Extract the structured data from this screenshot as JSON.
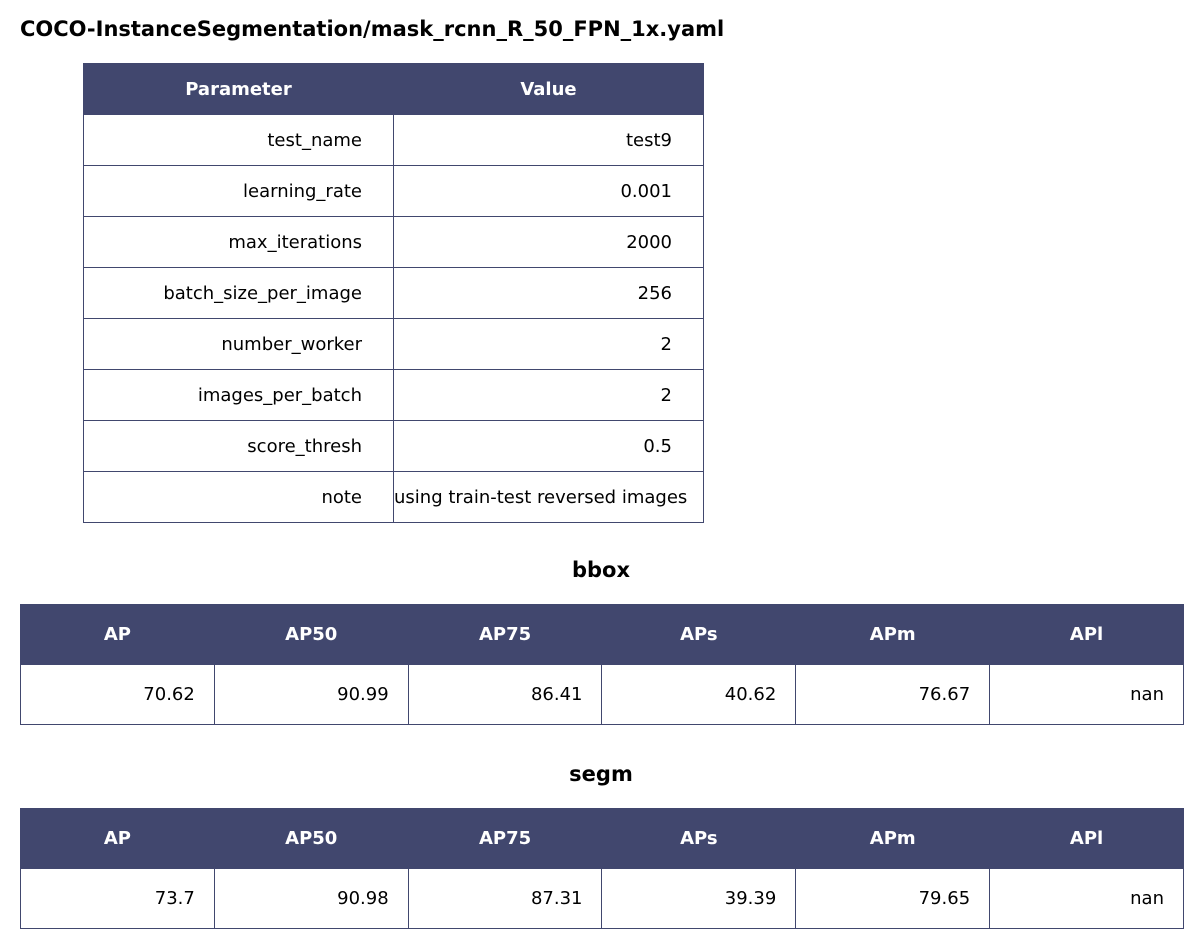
{
  "title": "COCO-InstanceSegmentation/mask_rcnn_R_50_FPN_1x.yaml",
  "chart_data": [
    {
      "type": "table",
      "columns": [
        "Parameter",
        "Value"
      ],
      "rows": [
        [
          "test_name",
          "test9"
        ],
        [
          "learning_rate",
          "0.001"
        ],
        [
          "max_iterations",
          "2000"
        ],
        [
          "batch_size_per_image",
          "256"
        ],
        [
          "number_worker",
          "2"
        ],
        [
          "images_per_batch",
          "2"
        ],
        [
          "score_thresh",
          "0.5"
        ],
        [
          "note",
          "using train-test reversed images"
        ]
      ]
    },
    {
      "type": "table",
      "title": "bbox",
      "columns": [
        "AP",
        "AP50",
        "AP75",
        "APs",
        "APm",
        "APl"
      ],
      "rows": [
        [
          "70.62",
          "90.99",
          "86.41",
          "40.62",
          "76.67",
          "nan"
        ]
      ]
    },
    {
      "type": "table",
      "title": "segm",
      "columns": [
        "AP",
        "AP50",
        "AP75",
        "APs",
        "APm",
        "APl"
      ],
      "rows": [
        [
          "73.7",
          "90.98",
          "87.31",
          "39.39",
          "79.65",
          "nan"
        ]
      ]
    }
  ],
  "colors": {
    "header_background": "#41476e",
    "header_text": "#ffffff",
    "border": "#41476e"
  }
}
